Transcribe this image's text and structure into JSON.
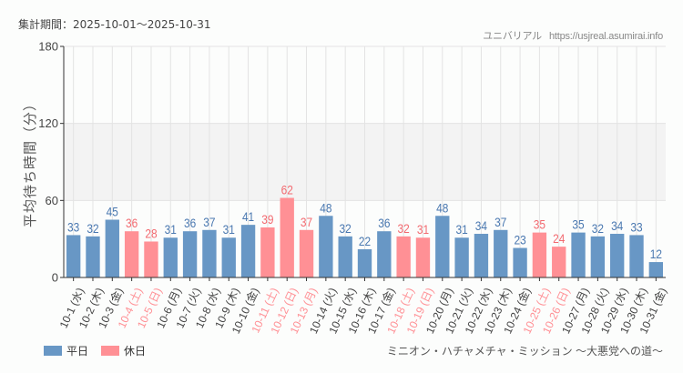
{
  "header": {
    "period_label": "集計期間：2025-10-01～2025-10-31",
    "site_name": "ユニバリアル",
    "site_url": "https://usjreal.asumirai.info"
  },
  "footer": {
    "attraction_name": "ミニオン・ハチャメチャ・ミッション ～大悪党への道～"
  },
  "legend": {
    "weekday_label": "平日",
    "holiday_label": "休日"
  },
  "colors": {
    "weekday": "#6897c5",
    "holiday": "#ff9095",
    "weekday_text": "#4a78b0",
    "holiday_text": "#f26a70",
    "band": "#f3f3f3",
    "grid": "#e3e3e3",
    "axis": "#333333"
  },
  "chart_data": {
    "type": "bar",
    "title": "",
    "xlabel": "",
    "ylabel": "平均待ち時間（分）",
    "ylim": [
      0,
      180
    ],
    "yticks": [
      0,
      60,
      120,
      180
    ],
    "shaded_band": [
      60,
      120
    ],
    "grid": true,
    "legend_position": "bottom-left",
    "categories": [
      "10-1 (水)",
      "10-2 (木)",
      "10-3 (金)",
      "10-4 (土)",
      "10-5 (日)",
      "10-6 (月)",
      "10-7 (火)",
      "10-8 (水)",
      "10-9 (木)",
      "10-10 (金)",
      "10-11 (土)",
      "10-12 (日)",
      "10-13 (月)",
      "10-14 (火)",
      "10-15 (水)",
      "10-16 (木)",
      "10-17 (金)",
      "10-18 (土)",
      "10-19 (日)",
      "10-20 (月)",
      "10-21 (火)",
      "10-22 (水)",
      "10-23 (木)",
      "10-24 (金)",
      "10-25 (土)",
      "10-26 (日)",
      "10-27 (月)",
      "10-28 (火)",
      "10-29 (水)",
      "10-30 (木)",
      "10-31 (金)"
    ],
    "values": [
      33,
      32,
      45,
      36,
      28,
      31,
      36,
      37,
      31,
      41,
      39,
      62,
      37,
      48,
      32,
      22,
      36,
      32,
      31,
      48,
      31,
      34,
      37,
      23,
      35,
      24,
      35,
      32,
      34,
      33,
      12
    ],
    "day_type": [
      "weekday",
      "weekday",
      "weekday",
      "holiday",
      "holiday",
      "weekday",
      "weekday",
      "weekday",
      "weekday",
      "weekday",
      "holiday",
      "holiday",
      "holiday",
      "weekday",
      "weekday",
      "weekday",
      "weekday",
      "holiday",
      "holiday",
      "weekday",
      "weekday",
      "weekday",
      "weekday",
      "weekday",
      "holiday",
      "holiday",
      "weekday",
      "weekday",
      "weekday",
      "weekday",
      "weekday"
    ],
    "series": [
      {
        "name": "平日",
        "color": "#6897c5"
      },
      {
        "name": "休日",
        "color": "#ff9095"
      }
    ]
  }
}
